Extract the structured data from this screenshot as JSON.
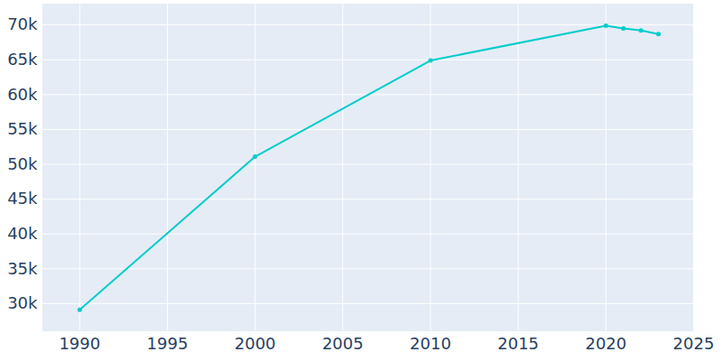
{
  "chart_data": {
    "type": "line",
    "x": [
      1990,
      2000,
      2010,
      2020,
      2021,
      2022,
      2023
    ],
    "values": [
      29100,
      51100,
      64900,
      69900,
      69500,
      69200,
      68700
    ],
    "color": "#00cccc",
    "marker": "circle",
    "xlim": [
      1987.9,
      2025
    ],
    "xticks": [
      1990,
      1995,
      2000,
      2005,
      2010,
      2015,
      2020,
      2025
    ],
    "ylim": [
      26100,
      73000
    ],
    "yticks": [
      {
        "value": 30000,
        "label": "30k"
      },
      {
        "value": 35000,
        "label": "35k"
      },
      {
        "value": 40000,
        "label": "40k"
      },
      {
        "value": 45000,
        "label": "45k"
      },
      {
        "value": 50000,
        "label": "50k"
      },
      {
        "value": 55000,
        "label": "55k"
      },
      {
        "value": 60000,
        "label": "60k"
      },
      {
        "value": 65000,
        "label": "65k"
      },
      {
        "value": 70000,
        "label": "70k"
      }
    ],
    "grid": true
  }
}
